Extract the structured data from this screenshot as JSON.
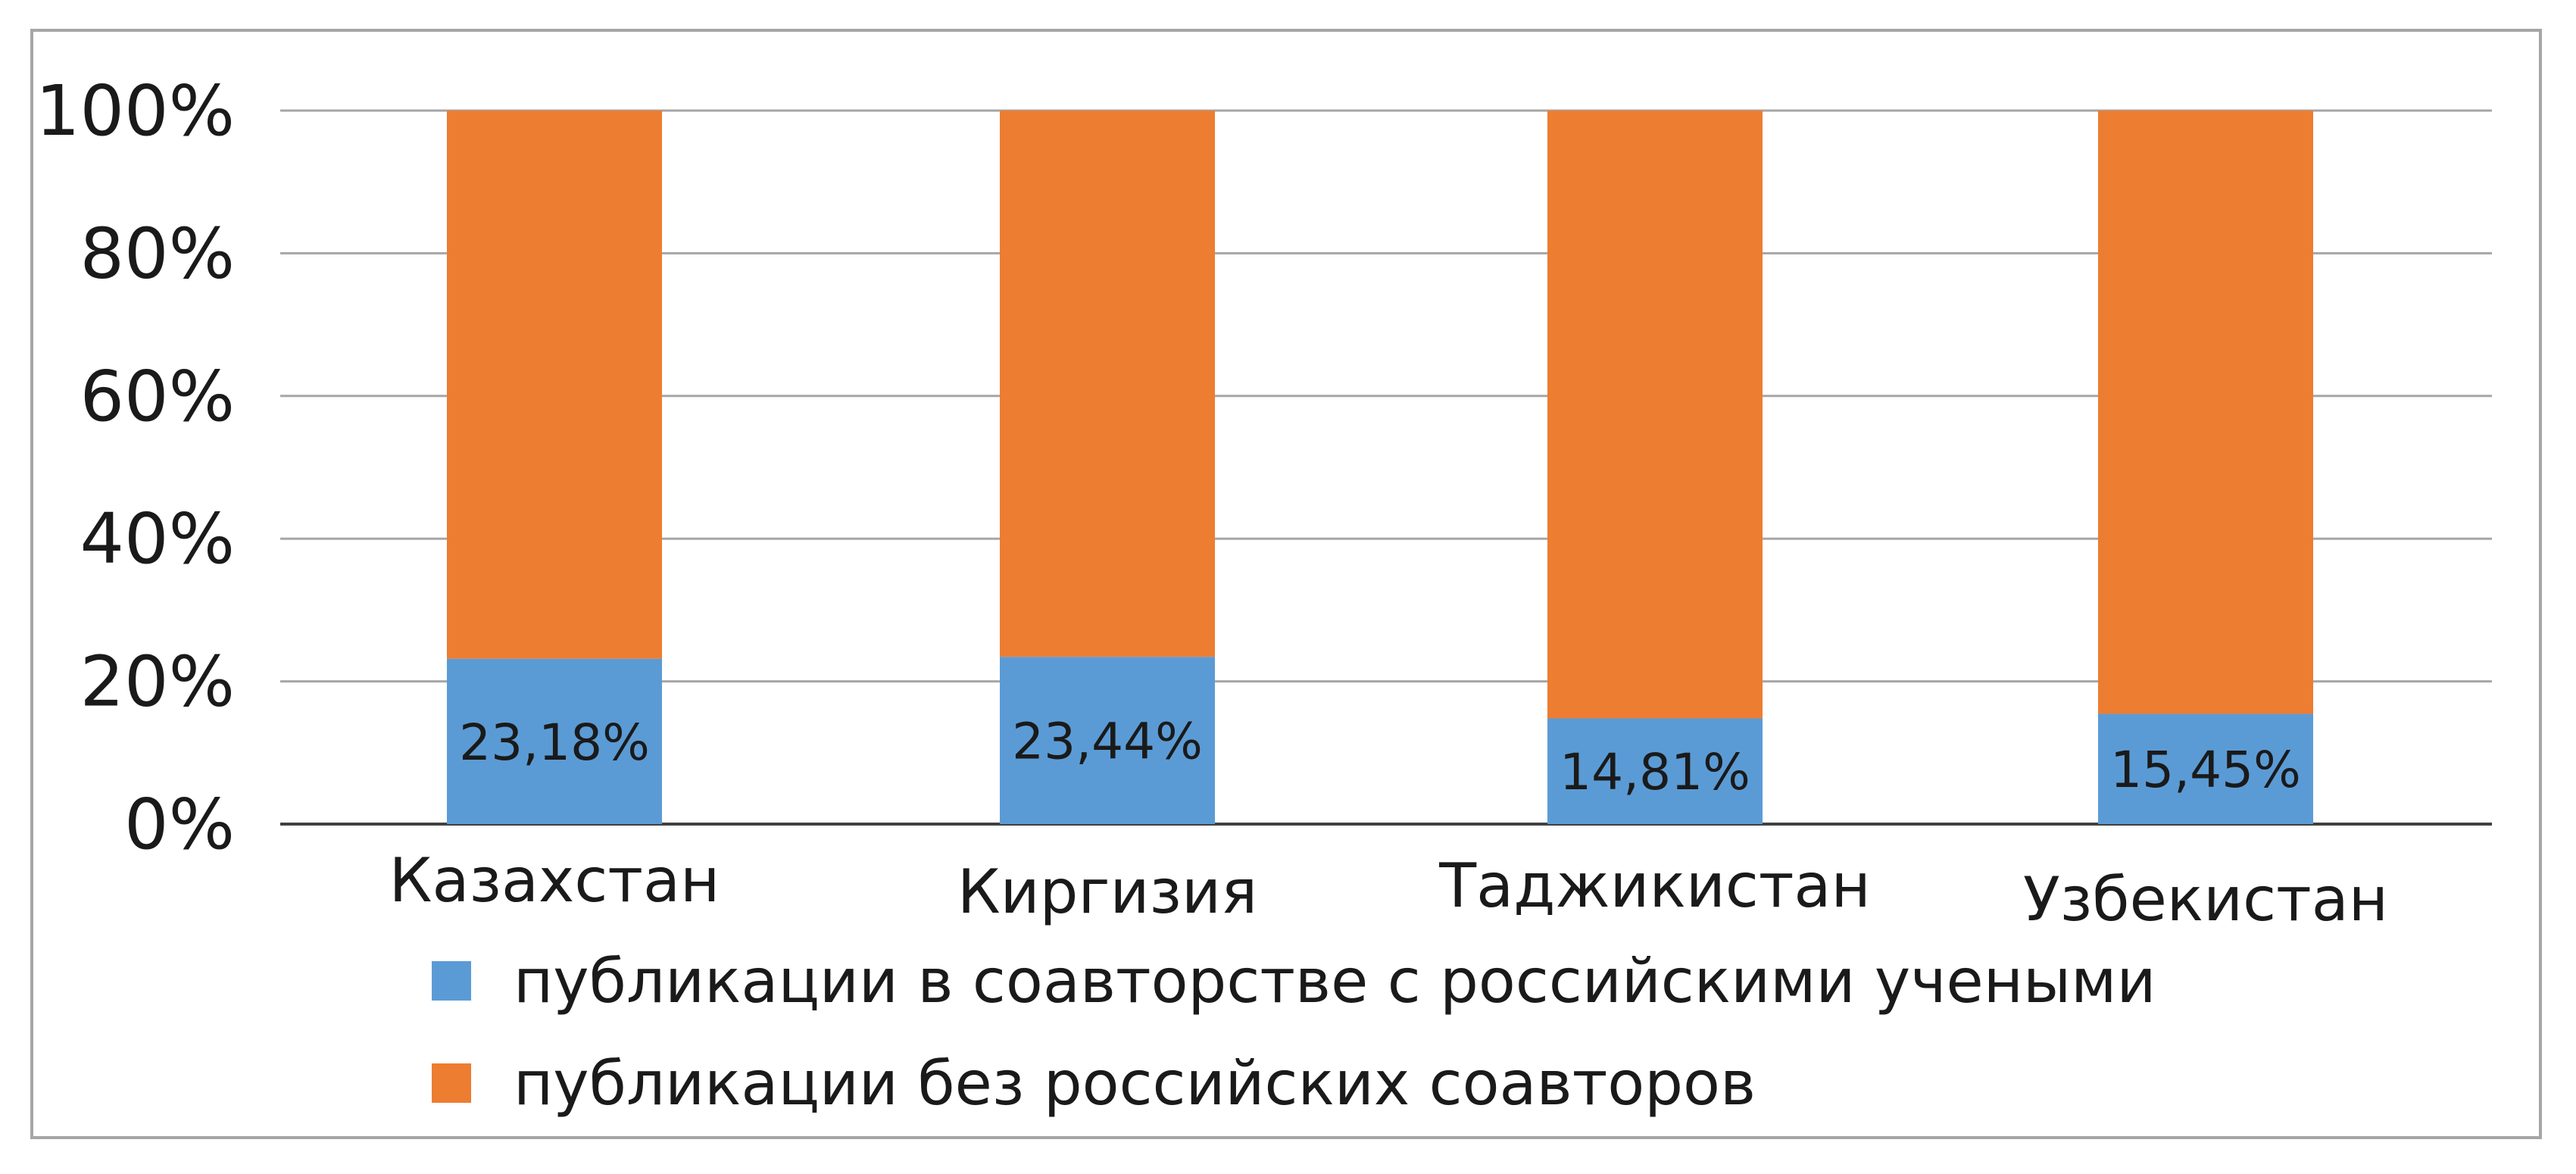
{
  "chart_data": {
    "type": "bar",
    "stacked": true,
    "percent_stacked": true,
    "categories": [
      "Казахстан",
      "Киргизия",
      "Таджикистан",
      "Узбекистан"
    ],
    "series": [
      {
        "name": "публикации в соавторстве с российскими учеными",
        "values": [
          23.18,
          23.44,
          14.81,
          15.45
        ],
        "data_labels": [
          "23,18%",
          "23,44%",
          "14,81%",
          "15,45%"
        ],
        "color": "#5b9bd5"
      },
      {
        "name": "публикации без российских соавторов",
        "values": [
          76.82,
          76.56,
          85.19,
          84.55
        ],
        "color": "#ed7d31"
      }
    ],
    "y_ticks": [
      "0%",
      "20%",
      "40%",
      "60%",
      "80%",
      "100%"
    ],
    "ylim": [
      0,
      100
    ],
    "grid": true,
    "legend_position": "bottom-left",
    "gridline_color": "#a6a6a6",
    "axis_color": "#404040"
  }
}
